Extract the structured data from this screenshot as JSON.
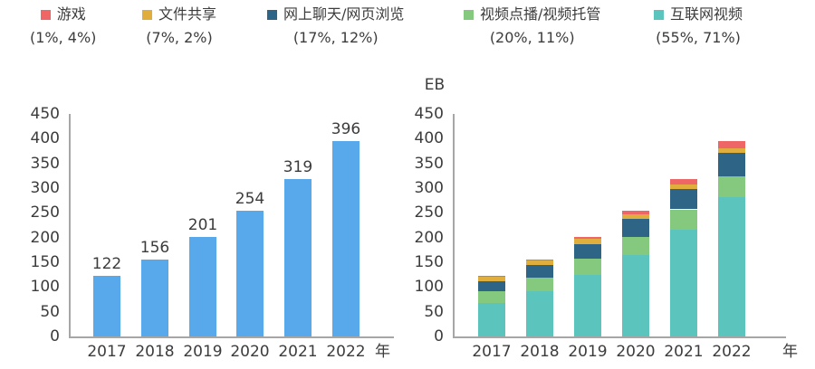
{
  "legend": {
    "items": [
      {
        "label": "游戏",
        "pct": "(1%, 4%)",
        "color": "#ee6666"
      },
      {
        "label": "文件共享",
        "pct": "(7%, 2%)",
        "color": "#dfae3c"
      },
      {
        "label": "网上聊天/网页浏览",
        "pct": "(17%, 12%)",
        "color": "#2e6587"
      },
      {
        "label": "视频点播/视频托管",
        "pct": "(20%, 11%)",
        "color": "#84c97d"
      },
      {
        "label": "互联网视频",
        "pct": "(55%, 71%)",
        "color": "#5bc4bd"
      }
    ]
  },
  "chart_data": [
    {
      "type": "bar",
      "title": "",
      "categories": [
        "2017",
        "2018",
        "2019",
        "2020",
        "2021",
        "2022"
      ],
      "values": [
        122,
        156,
        201,
        254,
        319,
        396
      ],
      "bar_color": "#57a9ec",
      "xlabel": "年",
      "ylabel": "",
      "ylim": [
        0,
        450
      ],
      "ytick_step": 50,
      "grid": false,
      "data_labels": true
    },
    {
      "type": "bar",
      "stacked": true,
      "title": "",
      "unit_label": "EB",
      "categories": [
        "2017",
        "2018",
        "2019",
        "2020",
        "2021",
        "2022"
      ],
      "series": [
        {
          "name": "互联网视频",
          "color": "#5bc4bd",
          "values": [
            67,
            91,
            124,
            164,
            216,
            281
          ]
        },
        {
          "name": "视频点播/视频托管",
          "color": "#84c97d",
          "values": [
            24,
            28,
            33,
            37,
            41,
            43
          ]
        },
        {
          "name": "网上聊天/网页浏览",
          "color": "#2e6587",
          "values": [
            21,
            25,
            30,
            36,
            41,
            48
          ]
        },
        {
          "name": "文件共享",
          "color": "#dfae3c",
          "values": [
            9,
            9,
            10,
            10,
            10,
            8
          ]
        },
        {
          "name": "游戏",
          "color": "#ee6666",
          "values": [
            1,
            3,
            4,
            7,
            11,
            16
          ]
        }
      ],
      "totals": [
        122,
        156,
        201,
        254,
        319,
        396
      ],
      "xlabel": "年",
      "ylabel": "",
      "ylim": [
        0,
        450
      ],
      "ytick_step": 50,
      "grid": false,
      "legend_position": "top"
    }
  ]
}
